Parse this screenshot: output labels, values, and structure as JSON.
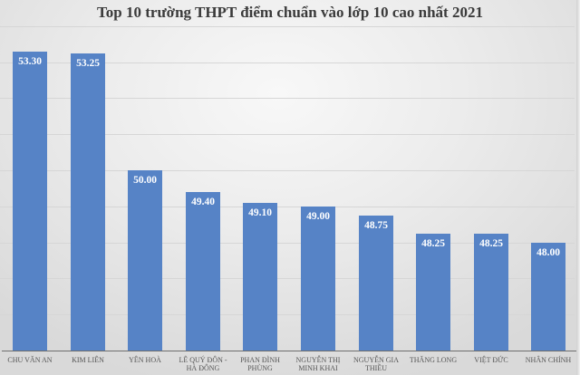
{
  "chart_data": {
    "type": "bar",
    "title": "Top 10 trường THPT điểm chuẩn vào lớp 10 cao nhất 2021",
    "xlabel": "",
    "ylabel": "",
    "categories": [
      "CHU VĂN AN",
      "KIM LIÊN",
      "YÊN HOÀ",
      "LÊ QUÝ ĐÔN - HÀ ĐÔNG",
      "PHAN ĐÌNH PHÙNG",
      "NGUYỄN THỊ MINH KHAI",
      "NGUYỄN GIA THIỀU",
      "THĂNG LONG",
      "VIỆT ĐỨC",
      "NHÂN CHÍNH"
    ],
    "values": [
      53.3,
      53.25,
      50.0,
      49.4,
      49.1,
      49.0,
      48.75,
      48.25,
      48.25,
      48.0
    ],
    "value_labels": [
      "53.30",
      "53.25",
      "50.00",
      "49.40",
      "49.10",
      "49.00",
      "48.75",
      "48.25",
      "48.25",
      "48.00"
    ],
    "ylim": [
      45,
      54
    ],
    "grid": true,
    "legend": "none",
    "bar_color": "#5683c6"
  },
  "labels_display": [
    [
      "CHU VĂN AN"
    ],
    [
      "KIM LIÊN"
    ],
    [
      "YÊN HOÀ"
    ],
    [
      "LÊ QUÝ ĐÔN -",
      "HÀ ĐÔNG"
    ],
    [
      "PHAN ĐÌNH",
      "PHÙNG"
    ],
    [
      "NGUYỄN THỊ",
      "MINH KHAI"
    ],
    [
      "NGUYỄN GIA",
      "THIỀU"
    ],
    [
      "THĂNG LONG"
    ],
    [
      "VIỆT ĐỨC"
    ],
    [
      "NHÂN CHÍNH"
    ]
  ]
}
